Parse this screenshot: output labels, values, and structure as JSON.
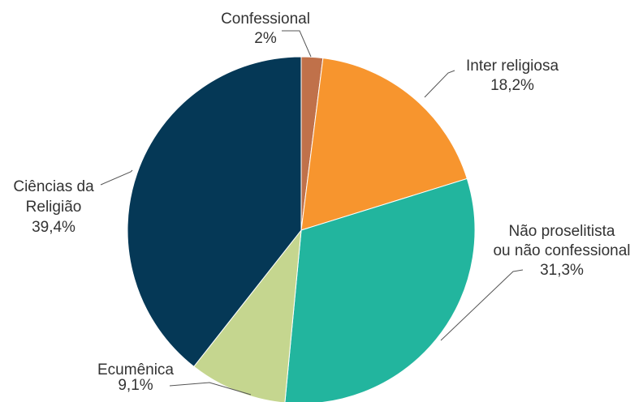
{
  "chart_data": {
    "type": "pie",
    "title": "",
    "slices": [
      {
        "label": "Confessional",
        "label_lines": [
          "Confessional"
        ],
        "value": 2.0,
        "display": "2%",
        "color": "#c0714a"
      },
      {
        "label": "Inter religiosa",
        "label_lines": [
          "Inter religiosa"
        ],
        "value": 18.2,
        "display": "18,2%",
        "color": "#f7952e"
      },
      {
        "label": "Não proselitista ou não confessional",
        "label_lines": [
          "Não proselitista",
          "ou não confessional"
        ],
        "value": 31.3,
        "display": "31,3%",
        "color": "#22b59e"
      },
      {
        "label": "Ecumênica",
        "label_lines": [
          "Ecumênica"
        ],
        "value": 9.1,
        "display": "9,1%",
        "color": "#c5d68f"
      },
      {
        "label": "Ciências da Religião",
        "label_lines": [
          "Ciências da",
          "Religião"
        ],
        "value": 39.4,
        "display": "39,4%",
        "color": "#053856"
      }
    ],
    "start_angle_deg": 0,
    "direction": "clockwise",
    "legend": "none"
  }
}
